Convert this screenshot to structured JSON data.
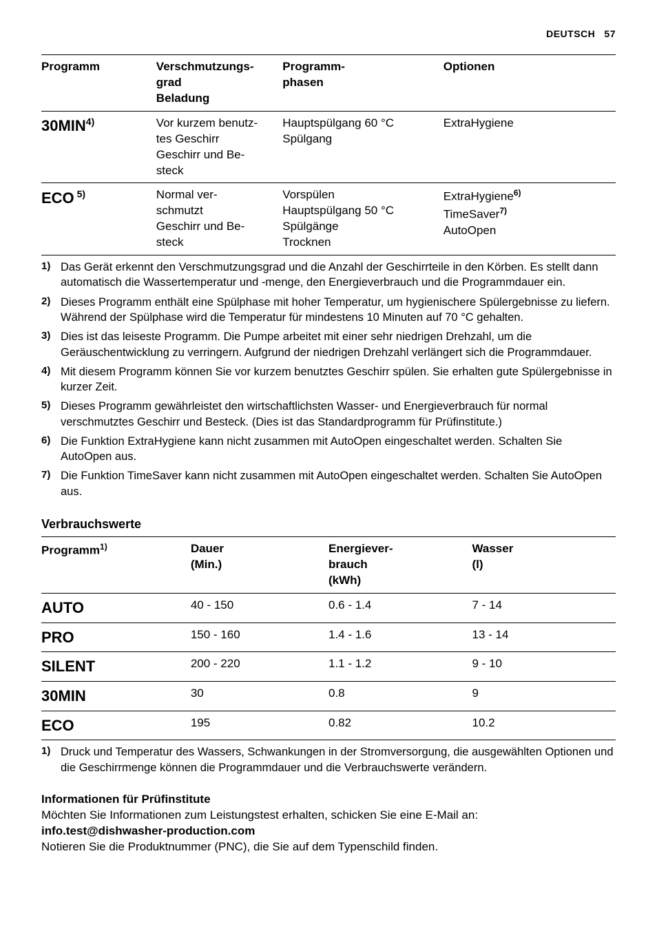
{
  "header": {
    "lang": "DEUTSCH",
    "page": "57"
  },
  "table1": {
    "headers": [
      "Programm",
      "Verschmutzungs-\ngrad\nBeladung",
      "Programm-\nphasen",
      "Optionen"
    ],
    "colwidths": [
      "20%",
      "22%",
      "28%",
      "30%"
    ],
    "rows": [
      {
        "prog": "30MIN",
        "prog_sup": "4)",
        "c2": "Vor kurzem benutz-\ntes Geschirr\nGeschirr und Be-\nsteck",
        "c3": "Hauptspülgang 60 °C\nSpülgang",
        "c4_parts": [
          {
            "t": "ExtraHygiene"
          }
        ]
      },
      {
        "prog": "ECO",
        "prog_sup": " 5)",
        "c2": "Normal ver-\nschmutzt\nGeschirr und Be-\nsteck",
        "c3": "Vorspülen\nHauptspülgang 50 °C\nSpülgänge\nTrocknen",
        "c4_parts": [
          {
            "t": "ExtraHygiene",
            "sup": "6)"
          },
          {
            "t": "TimeSaver",
            "sup": "7)"
          },
          {
            "t": "AutoOpen"
          }
        ]
      }
    ]
  },
  "footnotes1": [
    {
      "n": "1)",
      "t": "Das Gerät erkennt den Verschmutzungsgrad und die Anzahl der Geschirrteile in den Körben. Es stellt dann automatisch die Wassertemperatur und -menge, den Energieverbrauch und die Programmdauer ein."
    },
    {
      "n": "2)",
      "t": "Dieses Programm enthält eine Spülphase mit hoher Temperatur, um hygienischere Spülergebnisse zu liefern. Während der Spülphase wird die Temperatur für mindestens 10 Minuten auf 70 °C gehalten."
    },
    {
      "n": "3)",
      "t": "Dies ist das leiseste Programm. Die Pumpe arbeitet mit einer sehr niedrigen Drehzahl, um die Geräuschentwicklung zu verringern. Aufgrund der niedrigen Drehzahl verlängert sich die Programmdauer."
    },
    {
      "n": "4)",
      "t": "Mit diesem Programm können Sie vor kurzem benutztes Geschirr spülen. Sie erhalten gute Spülergebnisse in kurzer Zeit."
    },
    {
      "n": "5)",
      "t": "Dieses Programm gewährleistet den wirtschaftlichsten Wasser- und Energieverbrauch für normal verschmutztes Geschirr und Besteck. (Dies ist das Standardprogramm für Prüfinstitute.)"
    },
    {
      "n": "6)",
      "t": "Die Funktion ExtraHygiene kann nicht zusammen mit AutoOpen eingeschaltet werden. Schalten Sie AutoOpen aus."
    },
    {
      "n": "7)",
      "t": "Die Funktion TimeSaver kann nicht zusammen mit AutoOpen eingeschaltet werden. Schalten Sie AutoOpen aus."
    }
  ],
  "section2_title": "Verbrauchswerte",
  "table2": {
    "headers": [
      "Programm",
      "Dauer\n(Min.)",
      "Energiever-\nbrauch\n(kWh)",
      "Wasser\n(l)"
    ],
    "header_sup": "1)",
    "colwidths": [
      "26%",
      "24%",
      "25%",
      "25%"
    ],
    "rows": [
      {
        "prog": "AUTO",
        "c2": "40 - 150",
        "c3": "0.6 - 1.4",
        "c4": "7 - 14"
      },
      {
        "prog": "PRO",
        "c2": "150 - 160",
        "c3": "1.4 - 1.6",
        "c4": "13 - 14"
      },
      {
        "prog": "SILENT",
        "c2": "200 - 220",
        "c3": "1.1 - 1.2",
        "c4": "9 - 10"
      },
      {
        "prog": "30MIN",
        "c2": "30",
        "c3": "0.8",
        "c4": "9"
      },
      {
        "prog": "ECO",
        "c2": "195",
        "c3": "0.82",
        "c4": "10.2"
      }
    ]
  },
  "footnotes2": [
    {
      "n": "1)",
      "t": "Druck und Temperatur des Wassers, Schwankungen in der Stromversorgung, die ausgewählten Optionen und die Geschirrmenge können die Programmdauer und die Verbrauchswerte verändern."
    }
  ],
  "info": {
    "heading": "Informationen für Prüfinstitute",
    "line1": "Möchten Sie Informationen zum Leistungstest erhalten, schicken Sie eine E-Mail an:",
    "email": "info.test@dishwasher-production.com",
    "line2": "Notieren Sie die Produktnummer (PNC), die Sie auf dem Typenschild finden."
  }
}
